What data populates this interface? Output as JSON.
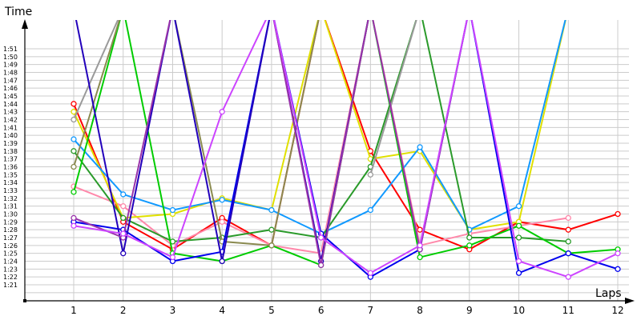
{
  "chart_data": {
    "type": "line",
    "title": "",
    "xlabel": "Laps",
    "ylabel": "Time",
    "x": [
      1,
      2,
      3,
      4,
      5,
      6,
      7,
      8,
      9,
      10,
      11,
      12
    ],
    "y_tick_labels": [
      "1:21",
      "1:22",
      "1:23",
      "1:24",
      "1:25",
      "1:26",
      "1:27",
      "1:28",
      "1:29",
      "1:30",
      "1:31",
      "1:32",
      "1:33",
      "1:34",
      "1:35",
      "1:36",
      "1:37",
      "1:38",
      "1:39",
      "1:40",
      "1:41",
      "1:42",
      "1:43",
      "1:44",
      "1:45",
      "1:46",
      "1:47",
      "1:48",
      "1:49",
      "1:50",
      "1:51"
    ],
    "ylim_seconds": [
      81,
      111
    ],
    "grid": true,
    "legend": "none",
    "note": "Values in seconds; points far above 1:51 (pit laps / off-scale) are drawn as spikes exiting the top of the plot (value 130 = off-scale).",
    "series": [
      {
        "name": "red",
        "color": "#ff0000",
        "values": [
          104,
          89,
          85.5,
          89.5,
          86,
          130,
          98,
          88,
          85.5,
          89,
          88,
          90
        ]
      },
      {
        "name": "pink",
        "color": "#ff88aa",
        "values": [
          93.5,
          91,
          86,
          89,
          86,
          85,
          130,
          86,
          87.5,
          88.5,
          89.5,
          null
        ]
      },
      {
        "name": "yellow",
        "color": "#e0e000",
        "values": [
          103,
          89.5,
          90,
          92,
          90.5,
          130,
          97,
          98,
          88,
          89,
          130,
          null
        ]
      },
      {
        "name": "sky-blue",
        "color": "#1199ff",
        "values": [
          99.5,
          92.5,
          90.5,
          91.8,
          90.5,
          87.5,
          90.5,
          98.5,
          88,
          91,
          130,
          null
        ]
      },
      {
        "name": "dark-green",
        "color": "#2a9a2a",
        "values": [
          98,
          89.5,
          86.5,
          87,
          88,
          87,
          96,
          130,
          87,
          87,
          86.5,
          null
        ]
      },
      {
        "name": "green",
        "color": "#00cc00",
        "values": [
          92.8,
          130,
          85,
          84,
          86,
          83.5,
          130,
          84.5,
          86,
          88.5,
          85,
          85.5
        ]
      },
      {
        "name": "olive",
        "color": "#8a8a50",
        "values": [
          96,
          130,
          130,
          86.5,
          86,
          130,
          null,
          null,
          null,
          null,
          null,
          null
        ]
      },
      {
        "name": "grey",
        "color": "#9a9a9a",
        "values": [
          102,
          130,
          null,
          null,
          null,
          null,
          95,
          130,
          null,
          null,
          null,
          null
        ]
      },
      {
        "name": "blue",
        "color": "#0000ee",
        "values": [
          89,
          88,
          84,
          85.2,
          130,
          87.5,
          82,
          85.5,
          130,
          82.5,
          85,
          83
        ]
      },
      {
        "name": "indigo",
        "color": "#2200bb",
        "values": [
          130,
          85,
          130,
          84,
          130,
          84,
          130,
          null,
          null,
          null,
          null,
          null
        ]
      },
      {
        "name": "purple",
        "color": "#9933aa",
        "values": [
          89.5,
          87,
          130,
          130,
          130,
          83.5,
          130,
          85.5,
          130,
          null,
          null,
          null
        ]
      },
      {
        "name": "violet",
        "color": "#cc44ff",
        "values": [
          88.5,
          87.5,
          84.5,
          103,
          130,
          87,
          82.5,
          86,
          130,
          84,
          82,
          85
        ]
      }
    ]
  }
}
